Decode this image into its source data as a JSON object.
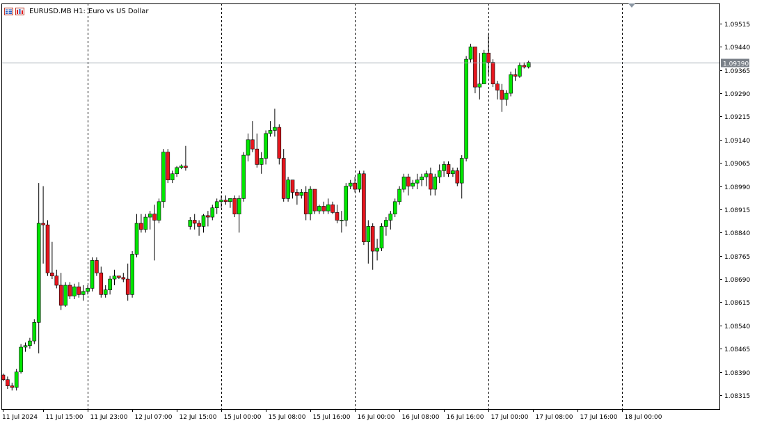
{
  "window": {
    "symbol": "EURUSD.MB",
    "timeframe": "H1:",
    "description": "Euro vs US Dollar"
  },
  "price_line": {
    "label": "1.09390",
    "value": 1.0939
  },
  "colors": {
    "bull": "#00e600",
    "bear": "#e6161e",
    "grid": "#000000",
    "price_line": "#a0a8b0",
    "price_label_bg": "#7a8088"
  },
  "chart_data": {
    "type": "candlestick",
    "title": "",
    "ylim": [
      1.0827,
      1.0958
    ],
    "y_ticks": [
      "1.09515",
      "1.09440",
      "1.09365",
      "1.09290",
      "1.09215",
      "1.09140",
      "1.09065",
      "1.08990",
      "1.08915",
      "1.08840",
      "1.08765",
      "1.08690",
      "1.08615",
      "1.08540",
      "1.08465",
      "1.08390",
      "1.08315"
    ],
    "x_ticks": [
      "11 Jul 2024",
      "11 Jul 15:00",
      "11 Jul 23:00",
      "12 Jul 07:00",
      "12 Jul 15:00",
      "15 Jul 00:00",
      "15 Jul 08:00",
      "15 Jul 16:00",
      "16 Jul 00:00",
      "16 Jul 08:00",
      "16 Jul 16:00",
      "17 Jul 00:00",
      "17 Jul 08:00",
      "17 Jul 16:00",
      "18 Jul 00:00"
    ],
    "day_separators": [
      "11 Jul 23:00",
      "15 Jul 00:00",
      "16 Jul 00:00",
      "17 Jul 00:00",
      "18 Jul 00:00"
    ],
    "candles": [
      [
        1.0838,
        1.08385,
        1.0836,
        1.08365
      ],
      [
        1.08365,
        1.08375,
        1.08335,
        1.08345
      ],
      [
        1.08345,
        1.08355,
        1.0833,
        1.0834
      ],
      [
        1.0834,
        1.084,
        1.0833,
        1.0839
      ],
      [
        1.0839,
        1.0848,
        1.08385,
        1.0847
      ],
      [
        1.0847,
        1.08485,
        1.08455,
        1.08475
      ],
      [
        1.08475,
        1.085,
        1.08465,
        1.0849
      ],
      [
        1.0849,
        1.0856,
        1.0848,
        1.0855
      ],
      [
        1.0855,
        1.09,
        1.0845,
        1.0887
      ],
      [
        1.0887,
        1.0899,
        1.0874,
        1.08865
      ],
      [
        1.08865,
        1.0888,
        1.087,
        1.0871
      ],
      [
        1.0871,
        1.0881,
        1.0869,
        1.087
      ],
      [
        1.087,
        1.0872,
        1.0866,
        1.0867
      ],
      [
        1.0867,
        1.0871,
        1.0859,
        1.08605
      ],
      [
        1.08605,
        1.0868,
        1.086,
        1.0867
      ],
      [
        1.0867,
        1.0868,
        1.08625,
        1.08635
      ],
      [
        1.08635,
        1.08675,
        1.08625,
        1.08665
      ],
      [
        1.08665,
        1.0868,
        1.0863,
        1.0864
      ],
      [
        1.0864,
        1.0867,
        1.0862,
        1.0865
      ],
      [
        1.0865,
        1.0867,
        1.0864,
        1.0866
      ],
      [
        1.0866,
        1.0876,
        1.0865,
        1.0875
      ],
      [
        1.0875,
        1.0876,
        1.087,
        1.0871
      ],
      [
        1.0871,
        1.0873,
        1.0863,
        1.0864
      ],
      [
        1.0864,
        1.0867,
        1.0863,
        1.08655
      ],
      [
        1.08655,
        1.087,
        1.0864,
        1.0869
      ],
      [
        1.0869,
        1.0872,
        1.0867,
        1.087
      ],
      [
        1.087,
        1.087,
        1.0869,
        1.08695
      ],
      [
        1.08695,
        1.0871,
        1.0868,
        1.0869
      ],
      [
        1.0869,
        1.0874,
        1.0862,
        1.0864
      ],
      [
        1.0864,
        1.0878,
        1.0863,
        1.0877
      ],
      [
        1.0877,
        1.089,
        1.0876,
        1.0887
      ],
      [
        1.0887,
        1.089,
        1.0884,
        1.0885
      ],
      [
        1.0885,
        1.089,
        1.0884,
        1.0889
      ],
      [
        1.0889,
        1.0891,
        1.0885,
        1.089
      ],
      [
        1.089,
        1.0893,
        1.0875,
        1.0888
      ],
      [
        1.0888,
        1.0895,
        1.0887,
        1.0894
      ],
      [
        1.0894,
        1.0911,
        1.0892,
        1.091
      ],
      [
        1.091,
        1.0911,
        1.09,
        1.0901
      ],
      [
        1.0901,
        1.0904,
        1.09,
        1.0903
      ],
      [
        1.0903,
        1.09055,
        1.0902,
        1.0905
      ],
      [
        1.0905,
        1.0906,
        1.09045,
        1.09055
      ],
      [
        1.09055,
        1.0912,
        1.0904,
        1.0905
      ],
      [
        1.0886,
        1.0889,
        1.0885,
        1.0888
      ],
      [
        1.0888,
        1.089,
        1.0885,
        1.0887
      ],
      [
        1.0887,
        1.0888,
        1.0883,
        1.0886
      ],
      [
        1.0886,
        1.089,
        1.0884,
        1.08895
      ],
      [
        1.08895,
        1.0891,
        1.0886,
        1.0889
      ],
      [
        1.0889,
        1.0893,
        1.0888,
        1.0892
      ],
      [
        1.0892,
        1.0895,
        1.089,
        1.0894
      ],
      [
        1.0894,
        1.0896,
        1.0892,
        1.08945
      ],
      [
        1.08945,
        1.0896,
        1.0893,
        1.0894
      ],
      [
        1.0894,
        1.0895,
        1.0892,
        1.0895
      ],
      [
        1.0895,
        1.0896,
        1.0889,
        1.089
      ],
      [
        1.089,
        1.0896,
        1.0884,
        1.0895
      ],
      [
        1.0895,
        1.091,
        1.0894,
        1.0909
      ],
      [
        1.0909,
        1.0916,
        1.0907,
        1.0914
      ],
      [
        1.0914,
        1.092,
        1.091,
        1.0911
      ],
      [
        1.0911,
        1.0916,
        1.0905,
        1.0906
      ],
      [
        1.0906,
        1.091,
        1.0903,
        1.0908
      ],
      [
        1.0908,
        1.0917,
        1.0906,
        1.0916
      ],
      [
        1.0916,
        1.092,
        1.0915,
        1.0917
      ],
      [
        1.0917,
        1.0924,
        1.0915,
        1.0918
      ],
      [
        1.0918,
        1.0919,
        1.0906,
        1.0908
      ],
      [
        1.0908,
        1.0911,
        1.0894,
        1.0895
      ],
      [
        1.0895,
        1.0902,
        1.0894,
        1.0901
      ],
      [
        1.0901,
        1.0901,
        1.0895,
        1.0897
      ],
      [
        1.0897,
        1.0898,
        1.0893,
        1.0896
      ],
      [
        1.0896,
        1.0898,
        1.0895,
        1.0897
      ],
      [
        1.0897,
        1.0899,
        1.0888,
        1.089
      ],
      [
        1.089,
        1.0899,
        1.0888,
        1.0898
      ],
      [
        1.0898,
        1.0898,
        1.089,
        1.0891
      ],
      [
        1.0891,
        1.0893,
        1.089,
        1.08925
      ],
      [
        1.08925,
        1.0894,
        1.089,
        1.0891
      ],
      [
        1.0891,
        1.0895,
        1.089,
        1.0893
      ],
      [
        1.0893,
        1.0894,
        1.089,
        1.08905
      ],
      [
        1.08905,
        1.0893,
        1.0887,
        1.0888
      ],
      [
        1.0888,
        1.0891,
        1.0884,
        1.0888
      ],
      [
        1.0888,
        1.09,
        1.0886,
        1.0899
      ],
      [
        1.0899,
        1.0901,
        1.0898,
        1.09
      ],
      [
        1.09,
        1.0902,
        1.0897,
        1.0898
      ],
      [
        1.0898,
        1.0904,
        1.0897,
        1.0903
      ],
      [
        1.0903,
        1.0904,
        1.088,
        1.0881
      ],
      [
        1.0881,
        1.0888,
        1.0874,
        1.0886
      ],
      [
        1.0886,
        1.0887,
        1.0872,
        1.0878
      ],
      [
        1.0878,
        1.0882,
        1.0875,
        1.0879
      ],
      [
        1.0879,
        1.0887,
        1.0878,
        1.0886
      ],
      [
        1.0886,
        1.0889,
        1.0883,
        1.0888
      ],
      [
        1.0888,
        1.0891,
        1.0885,
        1.089
      ],
      [
        1.089,
        1.0895,
        1.0889,
        1.0894
      ],
      [
        1.0894,
        1.0899,
        1.0893,
        1.0898
      ],
      [
        1.0898,
        1.0903,
        1.0897,
        1.0902
      ],
      [
        1.0902,
        1.0903,
        1.0896,
        1.0899
      ],
      [
        1.0899,
        1.0901,
        1.0898,
        1.09
      ],
      [
        1.09,
        1.0903,
        1.0898,
        1.0901
      ],
      [
        1.0901,
        1.0903,
        1.0899,
        1.0902
      ],
      [
        1.0902,
        1.0904,
        1.0899,
        1.0903
      ],
      [
        1.0903,
        1.0905,
        1.0896,
        1.0898
      ],
      [
        1.0898,
        1.0903,
        1.0896,
        1.0902
      ],
      [
        1.0902,
        1.0906,
        1.09,
        1.0904
      ],
      [
        1.0904,
        1.0907,
        1.0902,
        1.0906
      ],
      [
        1.0906,
        1.0907,
        1.0902,
        1.0903
      ],
      [
        1.0903,
        1.0905,
        1.0902,
        1.0904
      ],
      [
        1.0904,
        1.0905,
        1.0899,
        1.09
      ],
      [
        1.09,
        1.0909,
        1.0895,
        1.0908
      ],
      [
        1.0908,
        1.0941,
        1.0907,
        1.094
      ],
      [
        1.094,
        1.0945,
        1.0939,
        1.0944
      ],
      [
        1.0944,
        1.0944,
        1.0929,
        1.0931
      ],
      [
        1.0931,
        1.0942,
        1.0927,
        1.0932
      ],
      [
        1.0932,
        1.0943,
        1.0932,
        1.0942
      ],
      [
        1.0942,
        1.0948,
        1.0935,
        1.0939
      ],
      [
        1.0939,
        1.094,
        1.0931,
        1.0932
      ],
      [
        1.0932,
        1.0933,
        1.0927,
        1.093
      ],
      [
        1.093,
        1.0932,
        1.0923,
        1.0927
      ],
      [
        1.0927,
        1.093,
        1.0925,
        1.0929
      ],
      [
        1.0929,
        1.0936,
        1.0928,
        1.0935
      ],
      [
        1.0935,
        1.0937,
        1.0933,
        1.09345
      ],
      [
        1.09345,
        1.0939,
        1.0934,
        1.0938
      ],
      [
        1.0938,
        1.0939,
        1.0937,
        1.09375
      ],
      [
        1.09375,
        1.09395,
        1.0937,
        1.0939
      ]
    ]
  }
}
